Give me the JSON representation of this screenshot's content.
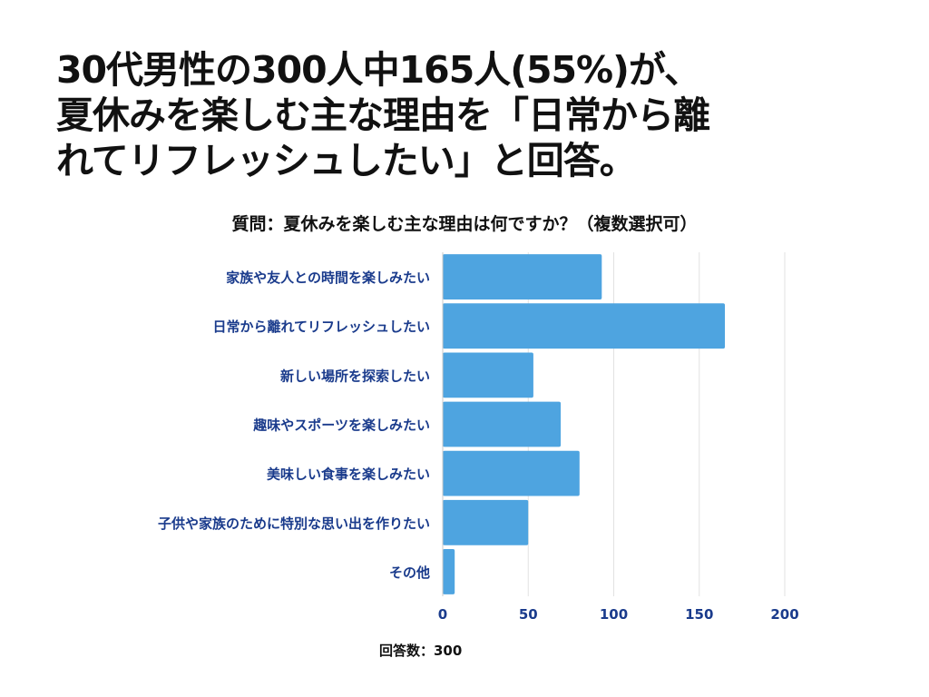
{
  "headline": {
    "line1": "30代男性の300人中165人(55%)が、",
    "line2": "夏休みを楽しむ主な理由を「日常から離",
    "line3": "れてリフレッシュしたい」と回答。"
  },
  "footer": {
    "respondents": "回答数：300"
  },
  "colors": {
    "bar": "#4ea4e0",
    "label": "#1a3b8c",
    "grid": "#e2e2e2",
    "axis": "#c8c8c8"
  },
  "chart_data": {
    "type": "bar",
    "orientation": "horizontal",
    "title": "質問：夏休みを楽しむ主な理由は何ですか？（複数選択可）",
    "categories": [
      "家族や友人との時間を楽しみたい",
      "日常から離れてリフレッシュしたい",
      "新しい場所を探索したい",
      "趣味やスポーツを楽しみたい",
      "美味しい食事を楽しみたい",
      "子供や家族のために特別な思い出を作りたい",
      "その他"
    ],
    "values": [
      93,
      165,
      53,
      69,
      80,
      50,
      7
    ],
    "xlim": [
      0,
      200
    ],
    "xticks": [
      0,
      50,
      100,
      150,
      200
    ],
    "xlabel": "",
    "ylabel": "",
    "grid": true
  }
}
